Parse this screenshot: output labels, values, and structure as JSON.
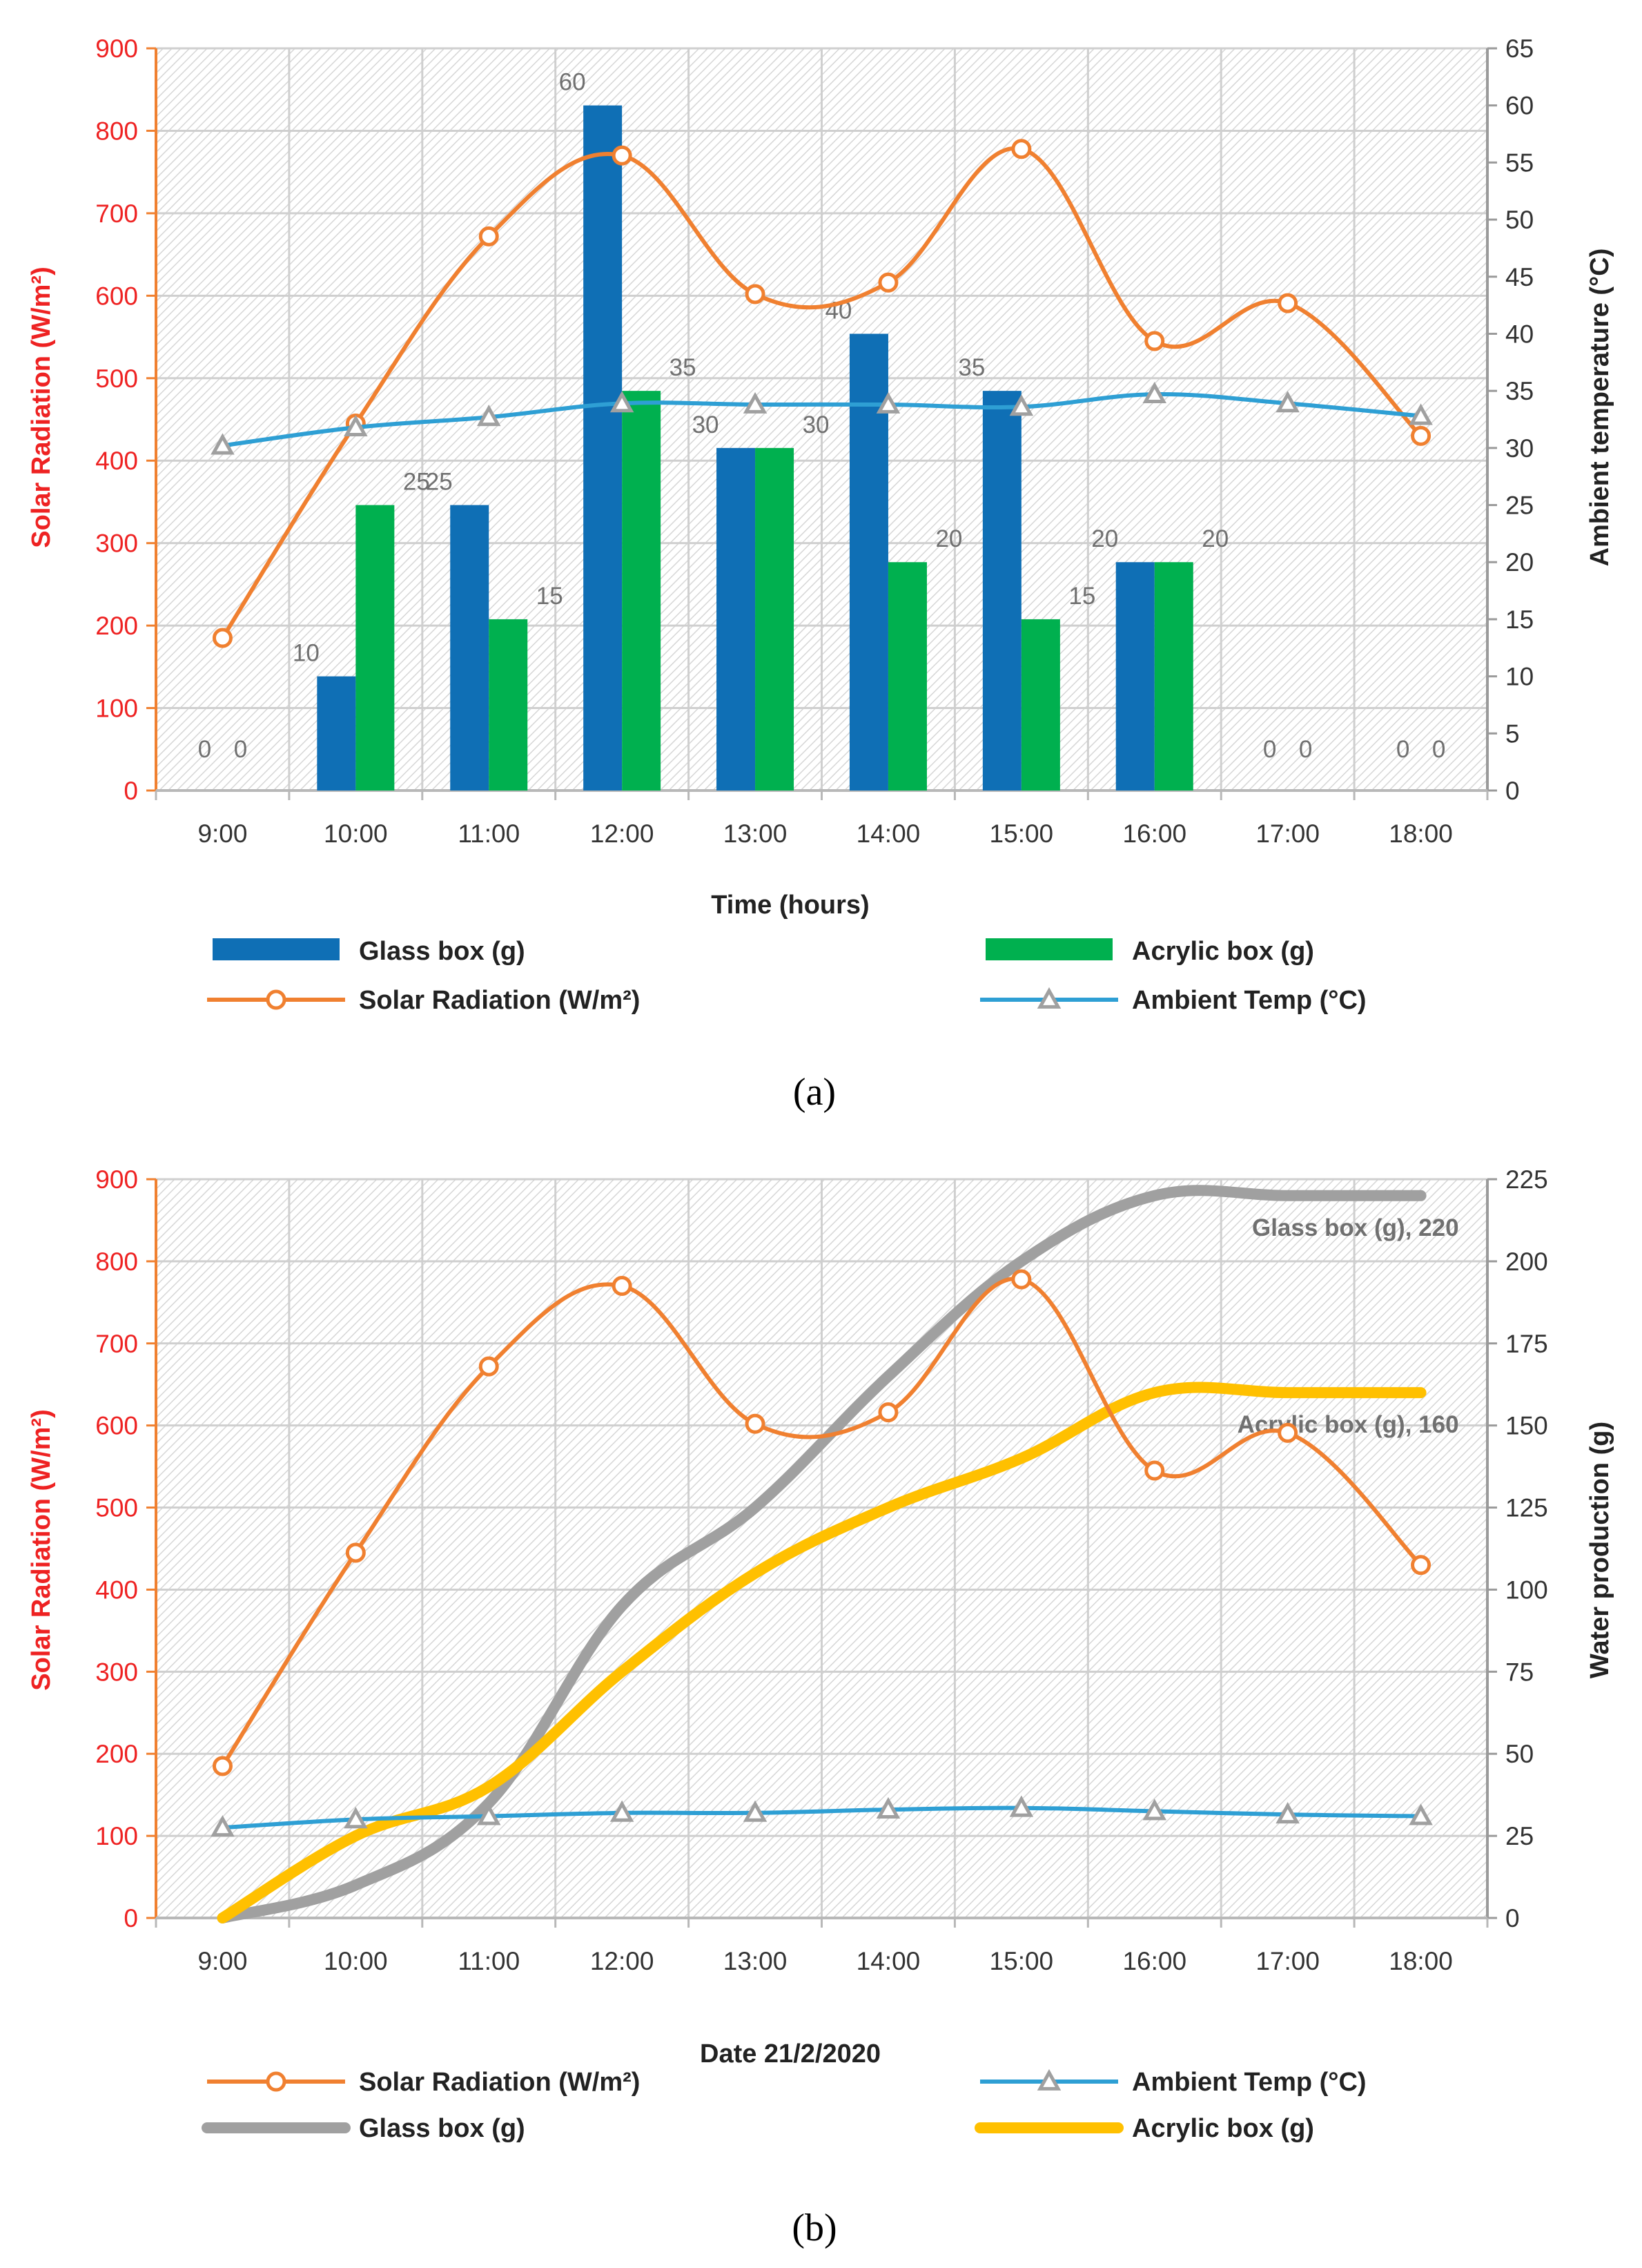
{
  "figure": {
    "caption_a": "(a)",
    "caption_b": "(b)"
  },
  "chart_data": [
    {
      "type": "bar",
      "panel": "a",
      "categories": [
        "9:00",
        "10:00",
        "11:00",
        "12:00",
        "13:00",
        "14:00",
        "15:00",
        "16:00",
        "17:00",
        "18:00"
      ],
      "xlabel": "Time (hours)",
      "ylabel": "Solar Radiation (W/m²)",
      "y2label": "Ambient temperature (°C)",
      "ylim": [
        0,
        900
      ],
      "yticks": [
        0,
        100,
        200,
        300,
        400,
        500,
        600,
        700,
        800,
        900
      ],
      "y2lim": [
        0,
        65
      ],
      "y2ticks": [
        0,
        5,
        10,
        15,
        20,
        25,
        30,
        35,
        40,
        45,
        50,
        55,
        60,
        65
      ],
      "grid": true,
      "series": [
        {
          "name": "Glass box (g)",
          "kind": "bar",
          "axis": "y2",
          "color": "#0f6fb5",
          "values": [
            0,
            10,
            25,
            60,
            30,
            40,
            35,
            20,
            0,
            0
          ]
        },
        {
          "name": "Acrylic box (g)",
          "kind": "bar",
          "axis": "y2",
          "color": "#00b04f",
          "values": [
            0,
            25,
            15,
            35,
            30,
            20,
            15,
            20,
            0,
            0
          ]
        },
        {
          "name": "Solar Radiation (W/m²)",
          "kind": "line",
          "axis": "y",
          "color": "#f08030",
          "marker": "circle",
          "values": [
            185,
            445,
            672,
            770,
            602,
            616,
            778,
            545,
            591,
            430
          ]
        },
        {
          "name": "Ambient Temp (°C)",
          "kind": "line",
          "axis": "y2",
          "color": "#2e9fd4",
          "marker": "triangle",
          "values": [
            30.2,
            31.8,
            32.7,
            33.9,
            33.8,
            33.8,
            33.6,
            34.7,
            33.9,
            32.8
          ]
        }
      ],
      "legend": [
        {
          "label": "Glass box (g)",
          "kind": "bar",
          "color": "#0f6fb5"
        },
        {
          "label": "Acrylic box (g)",
          "kind": "bar",
          "color": "#00b04f"
        },
        {
          "label": "Solar Radiation (W/m²)",
          "kind": "circle",
          "color": "#f08030"
        },
        {
          "label": "Ambient Temp (°C)",
          "kind": "triangle",
          "color": "#2e9fd4"
        }
      ]
    },
    {
      "type": "line",
      "panel": "b",
      "categories": [
        "9:00",
        "10:00",
        "11:00",
        "12:00",
        "13:00",
        "14:00",
        "15:00",
        "16:00",
        "17:00",
        "18:00"
      ],
      "xlabel": "Date 21/2/2020",
      "ylabel": "Solar Radiation (W/m²)",
      "y2label": "Water production (g)",
      "ylim": [
        0,
        900
      ],
      "yticks": [
        0,
        100,
        200,
        300,
        400,
        500,
        600,
        700,
        800,
        900
      ],
      "y2lim": [
        0,
        225
      ],
      "y2ticks": [
        0,
        25,
        50,
        75,
        100,
        125,
        150,
        175,
        200,
        225
      ],
      "grid": true,
      "series": [
        {
          "name": "Solar Radiation (W/m²)",
          "kind": "line",
          "axis": "y",
          "color": "#f08030",
          "marker": "circle",
          "values": [
            185,
            445,
            672,
            770,
            602,
            616,
            778,
            545,
            591,
            430
          ]
        },
        {
          "name": "Ambient Temp (°C)",
          "kind": "line",
          "axis": "y2",
          "color": "#2e9fd4",
          "marker": "triangle",
          "values": [
            27.5,
            30,
            31,
            32,
            32,
            33,
            33.5,
            32.5,
            31.5,
            31
          ]
        },
        {
          "name": "Glass box (g)",
          "kind": "line",
          "axis": "y2",
          "color": "#a0a0a0",
          "marker": "none",
          "values": [
            0,
            10,
            35,
            95,
            125,
            165,
            200,
            220,
            220,
            220
          ],
          "end_label": "Glass box (g), 220"
        },
        {
          "name": "Acrylic box (g)",
          "kind": "line",
          "axis": "y2",
          "color": "#ffc000",
          "marker": "none",
          "values": [
            0,
            25,
            40,
            75,
            105,
            125,
            140,
            160,
            160,
            160
          ],
          "end_label": "Acrylic box (g), 160"
        }
      ],
      "legend": [
        {
          "label": "Solar Radiation (W/m²)",
          "kind": "circle",
          "color": "#f08030"
        },
        {
          "label": "Ambient Temp (°C)",
          "kind": "triangle",
          "color": "#2e9fd4"
        },
        {
          "label": "Glass box (g)",
          "kind": "thick",
          "color": "#a0a0a0"
        },
        {
          "label": "Acrylic box (g)",
          "kind": "thick",
          "color": "#ffc000"
        }
      ]
    }
  ]
}
